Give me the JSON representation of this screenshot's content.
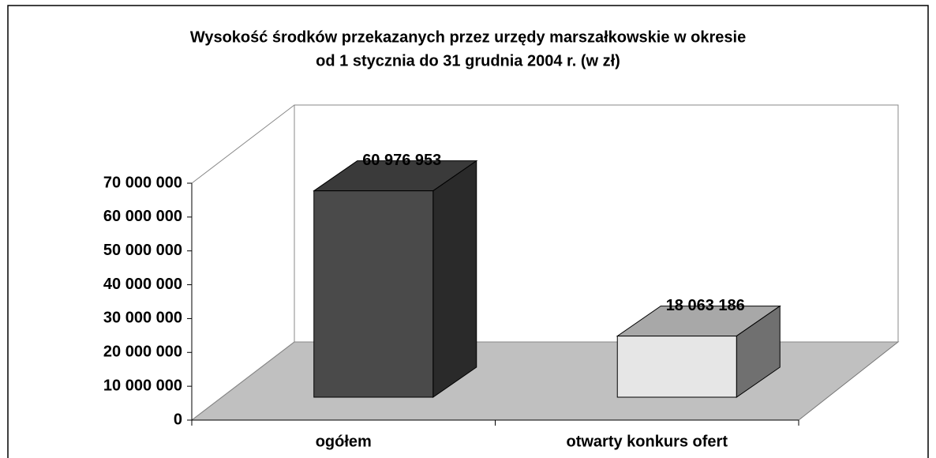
{
  "chart_data": {
    "type": "bar3d",
    "title": [
      "Wysokość środków przekazanych przez urzędy marszałkowskie w okresie",
      "od 1 stycznia do 31 grudnia 2004 r. (w zł)"
    ],
    "categories": [
      "ogółem",
      "otwarty konkurs ofert"
    ],
    "values": [
      60976953,
      18063186
    ],
    "value_labels": [
      "60 976 953",
      "18 063 186"
    ],
    "colors": [
      {
        "front": "#4a4a4a",
        "top": "#3a3a3a",
        "side": "#2a2a2a"
      },
      {
        "front": "#e6e6e6",
        "top": "#a8a8a8",
        "side": "#707070"
      }
    ],
    "ylim": [
      0,
      70000000
    ],
    "yticks": [
      {
        "value": 0,
        "label": "0"
      },
      {
        "value": 10000000,
        "label": "10 000 000"
      },
      {
        "value": 20000000,
        "label": "20 000 000"
      },
      {
        "value": 30000000,
        "label": "30 000 000"
      },
      {
        "value": 40000000,
        "label": "40 000 000"
      },
      {
        "value": 50000000,
        "label": "50 000 000"
      },
      {
        "value": 60000000,
        "label": "60 000 000"
      },
      {
        "value": 70000000,
        "label": "70 000 000"
      }
    ]
  }
}
